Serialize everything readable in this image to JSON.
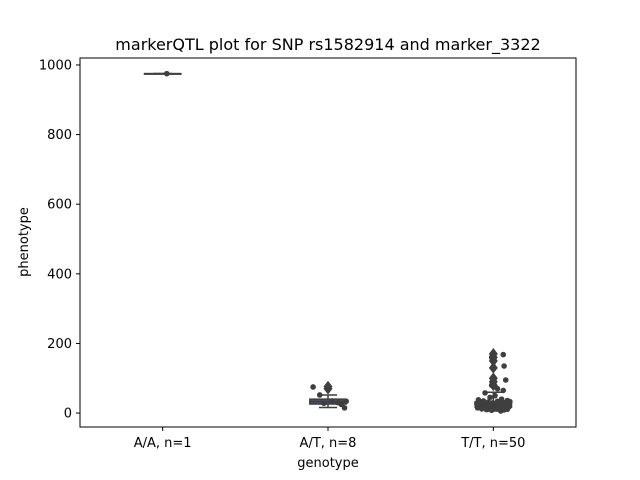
{
  "chart_data": {
    "type": "boxplot",
    "title": "markerQTL plot for SNP rs1582914 and marker_3322",
    "xlabel": "genotype",
    "ylabel": "phenotype",
    "ylim": [
      -40,
      1020
    ],
    "yticks": [
      0,
      200,
      400,
      600,
      800,
      1000
    ],
    "categories": [
      "A/A, n=1",
      "A/T, n=8",
      "T/T, n=50"
    ],
    "boxes": [
      {
        "category": "A/A, n=1",
        "q1": 975,
        "median": 975,
        "q3": 975,
        "whisker_low": 975,
        "whisker_high": 975,
        "fliers": []
      },
      {
        "category": "A/T, n=8",
        "q1": 26,
        "median": 33,
        "q3": 40,
        "whisker_low": 16,
        "whisker_high": 52,
        "fliers": [
          70,
          76
        ]
      },
      {
        "category": "T/T, n=50",
        "q1": 17,
        "median": 22,
        "q3": 33,
        "whisker_low": 6,
        "whisker_high": 60,
        "fliers": [
          80,
          90,
          100,
          130,
          150,
          160,
          170
        ]
      }
    ],
    "points": [
      {
        "category": "A/A, n=1",
        "values": [
          975
        ],
        "jitter": [
          0.05
        ]
      },
      {
        "category": "A/T, n=8",
        "values": [
          75,
          52,
          30,
          34,
          28,
          35,
          25,
          15
        ],
        "jitter": [
          -0.18,
          -0.1,
          0.12,
          0.22,
          -0.05,
          0.05,
          0.16,
          0.2
        ]
      },
      {
        "category": "T/T, n=50",
        "values": [
          168,
          160,
          150,
          135,
          95,
          80,
          70,
          65,
          58,
          50,
          45,
          40,
          38,
          36,
          35,
          34,
          33,
          32,
          31,
          30,
          30,
          29,
          28,
          27,
          26,
          25,
          25,
          24,
          23,
          22,
          22,
          21,
          20,
          20,
          19,
          18,
          18,
          17,
          16,
          15,
          15,
          14,
          13,
          12,
          12,
          11,
          10,
          9,
          8,
          6
        ],
        "jitter": [
          0.12,
          -0.02,
          0.0,
          0.13,
          0.15,
          -0.02,
          0.05,
          0.12,
          -0.1,
          0.02,
          -0.04,
          0.1,
          -0.18,
          0.17,
          -0.12,
          0.05,
          0.2,
          -0.06,
          0.09,
          -0.15,
          0.14,
          -0.01,
          0.07,
          -0.2,
          0.18,
          -0.09,
          0.03,
          0.11,
          -0.13,
          0.16,
          -0.05,
          0.08,
          -0.17,
          0.12,
          -0.03,
          0.19,
          -0.11,
          0.06,
          -0.07,
          0.14,
          -0.19,
          0.01,
          0.1,
          -0.14,
          0.04,
          0.17,
          -0.08,
          0.13,
          -0.02,
          0.09
        ]
      }
    ],
    "grid": false,
    "legend": "none",
    "colors": {
      "box_fill": "#4a4f6a",
      "line": "#3f3f3f",
      "point": "#3f3f3f"
    }
  }
}
